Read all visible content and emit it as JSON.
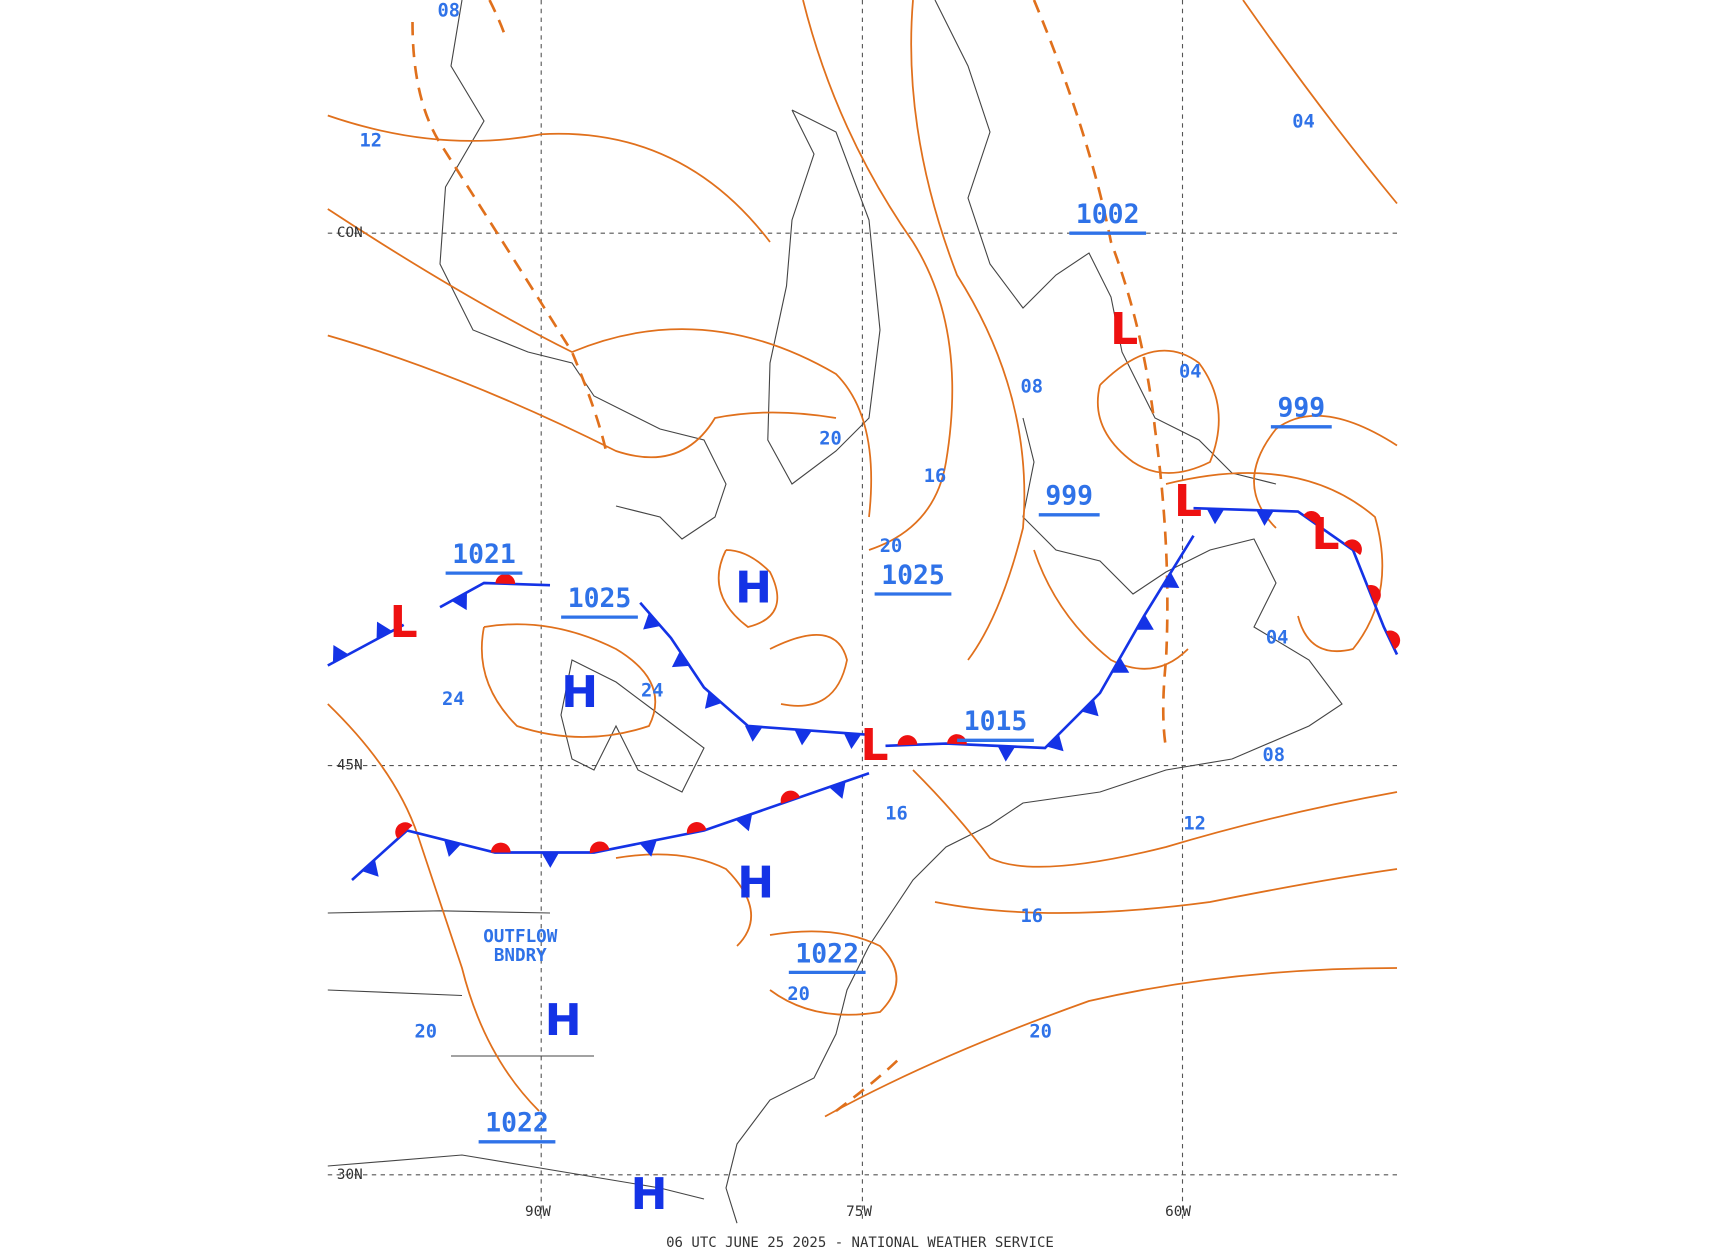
{
  "footer": "06 UTC JUNE 25 2025 - NATIONAL WEATHER SERVICE",
  "grid_labels": [
    "90W",
    "75W",
    "60W",
    "45N",
    "30N",
    "CON"
  ],
  "centers": [
    "L",
    "L",
    "L",
    "L",
    "L",
    "H",
    "H",
    "H",
    "H",
    "H"
  ],
  "central_pressures": [
    "1021",
    "1025",
    "1025",
    "1002",
    "999",
    "999",
    "1015",
    "1022",
    "1022"
  ],
  "isobar_labels": [
    "08",
    "12",
    "04",
    "04",
    "08",
    "20",
    "16",
    "20",
    "24",
    "24",
    "16",
    "08",
    "12",
    "16",
    "20",
    "20",
    "20",
    "04"
  ],
  "annotation": [
    "OUTFLOW",
    "BNDRY"
  ]
}
